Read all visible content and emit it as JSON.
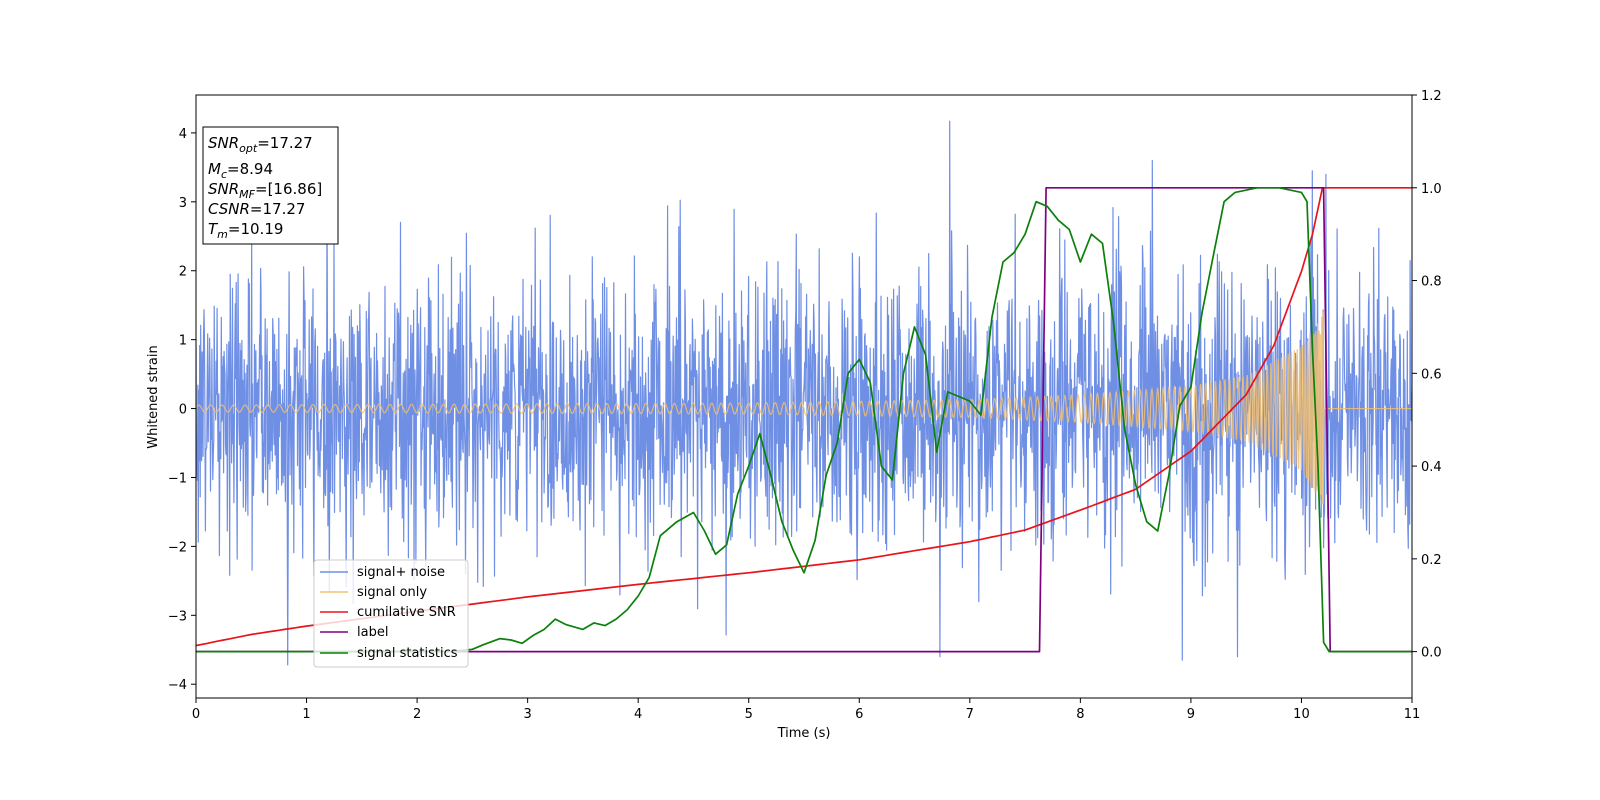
{
  "chart_data": {
    "type": "line",
    "xlabel": "Time (s)",
    "ylabel": "Whitened strain",
    "xlim": [
      0,
      11
    ],
    "ylim": [
      -4.2,
      4.55
    ],
    "y2lim": [
      -0.1,
      1.2
    ],
    "x_ticks": [
      "0",
      "1",
      "2",
      "3",
      "4",
      "5",
      "6",
      "7",
      "8",
      "9",
      "10",
      "11"
    ],
    "y_ticks": [
      "−4",
      "−3",
      "−2",
      "−1",
      "0",
      "1",
      "2",
      "3",
      "4"
    ],
    "y_tick_values": [
      -4,
      -3,
      -2,
      -1,
      0,
      1,
      2,
      3,
      4
    ],
    "y2_ticks": [
      "0.0",
      "0.2",
      "0.4",
      "0.6",
      "0.8",
      "1.0",
      "1.2"
    ],
    "y2_tick_values": [
      0.0,
      0.2,
      0.4,
      0.6,
      0.8,
      1.0,
      1.2
    ],
    "grid": false,
    "legend_position": "lower-left",
    "annotation": {
      "lines": [
        {
          "sym": "SNR",
          "sub": "opt",
          "value": "=17.27"
        },
        {
          "sym": "M",
          "sub": "c",
          "value": "=8.94"
        },
        {
          "sym": "SNR",
          "sub": "MF",
          "value": "=[16.86]"
        },
        {
          "sym": "CSNR",
          "sub": "",
          "value": "=17.27"
        },
        {
          "sym": "T",
          "sub": "m",
          "value": "=10.19"
        }
      ]
    },
    "series": [
      {
        "name": "signal+ noise",
        "color": "#6f8fe5",
        "axis": "left",
        "description": "whitened noisy strain, spans roughly -3.7 to 4.2 with std about 1",
        "x_range": [
          0,
          11
        ],
        "approx_std": 1.0,
        "peaks": [
          [
            6.82,
            4.17
          ],
          [
            0.83,
            -3.72
          ],
          [
            8.92,
            -3.65
          ],
          [
            9.42,
            -3.6
          ],
          [
            6.73,
            -3.6
          ],
          [
            8.65,
            3.6
          ],
          [
            10.1,
            3.45
          ],
          [
            10.22,
            3.4
          ]
        ]
      },
      {
        "name": "signal only",
        "color": "#f2c070",
        "axis": "left",
        "description": "inspiral chirp, amplitude grows toward merger then stops",
        "x_range": [
          0,
          10.2
        ],
        "amplitude_envelope": [
          [
            0,
            0.05
          ],
          [
            5,
            0.08
          ],
          [
            7,
            0.13
          ],
          [
            8,
            0.2
          ],
          [
            9,
            0.33
          ],
          [
            9.5,
            0.48
          ],
          [
            10.0,
            0.9
          ],
          [
            10.1,
            1.15
          ],
          [
            10.19,
            1.4
          ]
        ]
      },
      {
        "name": "cumilative SNR",
        "color": "#e8141b",
        "axis": "right",
        "x": [
          0,
          0.5,
          1,
          2,
          3,
          4,
          5,
          6,
          7,
          7.5,
          8,
          8.5,
          9,
          9.5,
          9.75,
          10,
          10.1,
          10.19,
          10.2,
          11
        ],
        "y": [
          0.013,
          0.037,
          0.055,
          0.087,
          0.118,
          0.145,
          0.17,
          0.198,
          0.237,
          0.262,
          0.305,
          0.35,
          0.432,
          0.554,
          0.66,
          0.82,
          0.9,
          1.0,
          1.0,
          1.0
        ]
      },
      {
        "name": "label",
        "color": "#800080",
        "axis": "right",
        "x": [
          0,
          7.63,
          7.69,
          10.2,
          10.26,
          11
        ],
        "y": [
          0.0,
          0.0,
          1.0,
          1.0,
          0.0,
          0.0
        ]
      },
      {
        "name": "signal statistics",
        "color": "#0b800b",
        "axis": "right",
        "x": [
          0,
          2.3,
          2.5,
          2.6,
          2.75,
          2.85,
          2.95,
          3.05,
          3.15,
          3.25,
          3.35,
          3.5,
          3.6,
          3.7,
          3.8,
          3.9,
          4.0,
          4.1,
          4.2,
          4.35,
          4.5,
          4.6,
          4.7,
          4.8,
          4.9,
          5.0,
          5.1,
          5.2,
          5.3,
          5.4,
          5.5,
          5.6,
          5.7,
          5.8,
          5.9,
          6.0,
          6.1,
          6.2,
          6.3,
          6.4,
          6.5,
          6.6,
          6.7,
          6.8,
          6.9,
          7.0,
          7.1,
          7.2,
          7.3,
          7.4,
          7.5,
          7.6,
          7.7,
          7.8,
          7.9,
          8.0,
          8.1,
          8.2,
          8.3,
          8.4,
          8.5,
          8.6,
          8.7,
          8.8,
          8.9,
          9.0,
          9.1,
          9.2,
          9.3,
          9.4,
          9.6,
          9.8,
          10.0,
          10.05,
          10.1,
          10.15,
          10.2,
          10.25,
          11
        ],
        "y": [
          0.0,
          0.0,
          0.005,
          0.015,
          0.028,
          0.025,
          0.018,
          0.035,
          0.048,
          0.07,
          0.058,
          0.048,
          0.062,
          0.056,
          0.07,
          0.09,
          0.12,
          0.16,
          0.25,
          0.28,
          0.3,
          0.26,
          0.21,
          0.23,
          0.34,
          0.4,
          0.47,
          0.38,
          0.28,
          0.22,
          0.17,
          0.24,
          0.38,
          0.45,
          0.6,
          0.63,
          0.58,
          0.4,
          0.37,
          0.6,
          0.7,
          0.64,
          0.43,
          0.56,
          0.55,
          0.54,
          0.51,
          0.72,
          0.84,
          0.86,
          0.9,
          0.97,
          0.96,
          0.93,
          0.91,
          0.84,
          0.9,
          0.88,
          0.71,
          0.48,
          0.36,
          0.28,
          0.26,
          0.38,
          0.53,
          0.57,
          0.73,
          0.85,
          0.97,
          0.99,
          1.0,
          1.0,
          0.99,
          0.97,
          0.65,
          0.4,
          0.02,
          0.0,
          0.0
        ]
      }
    ]
  }
}
